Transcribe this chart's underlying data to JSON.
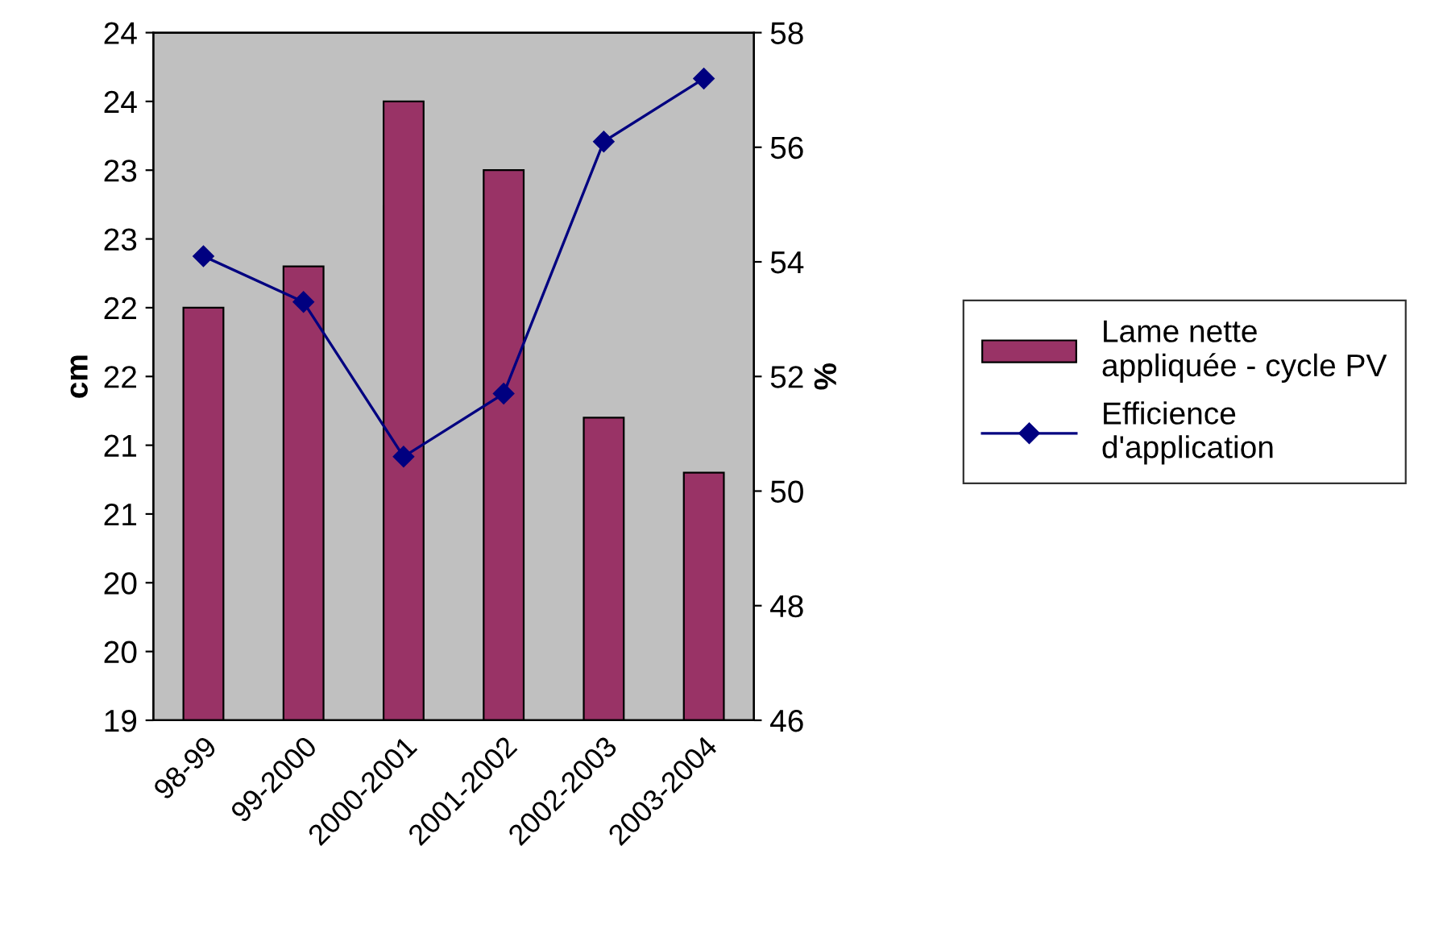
{
  "chart_data": {
    "type": "bar",
    "categories": [
      "98-99",
      "99-2000",
      "2000-2001",
      "2001-2002",
      "2002-2003",
      "2003-2004"
    ],
    "ylabel": "cm",
    "y2label": "%",
    "ylim": [
      19,
      24
    ],
    "yticks": [
      19,
      {
        "value": 19.5,
        "label": "20"
      },
      20,
      {
        "value": 20.5,
        "label": "21"
      },
      21,
      {
        "value": 21.5,
        "label": "22"
      },
      22,
      {
        "value": 22.5,
        "label": "23"
      },
      23,
      {
        "value": 23.5,
        "label": "24"
      },
      24
    ],
    "y2lim": [
      46,
      58
    ],
    "y2ticks": [
      46,
      48,
      50,
      52,
      54,
      56,
      58
    ],
    "series": [
      {
        "name": "Lame nette\nappliquée - cycle PV",
        "color": "#993366",
        "values": [
          22.0,
          22.3,
          23.5,
          23.0,
          21.2,
          20.8
        ]
      },
      {
        "name": "Efficience\nd'application",
        "type": "line",
        "axis": "y2",
        "color": "#000080",
        "marker": "diamond",
        "line_style": "solid",
        "values": [
          54.1,
          53.3,
          50.6,
          51.7,
          56.1,
          57.2
        ]
      }
    ],
    "grid": false,
    "legend": "right"
  }
}
